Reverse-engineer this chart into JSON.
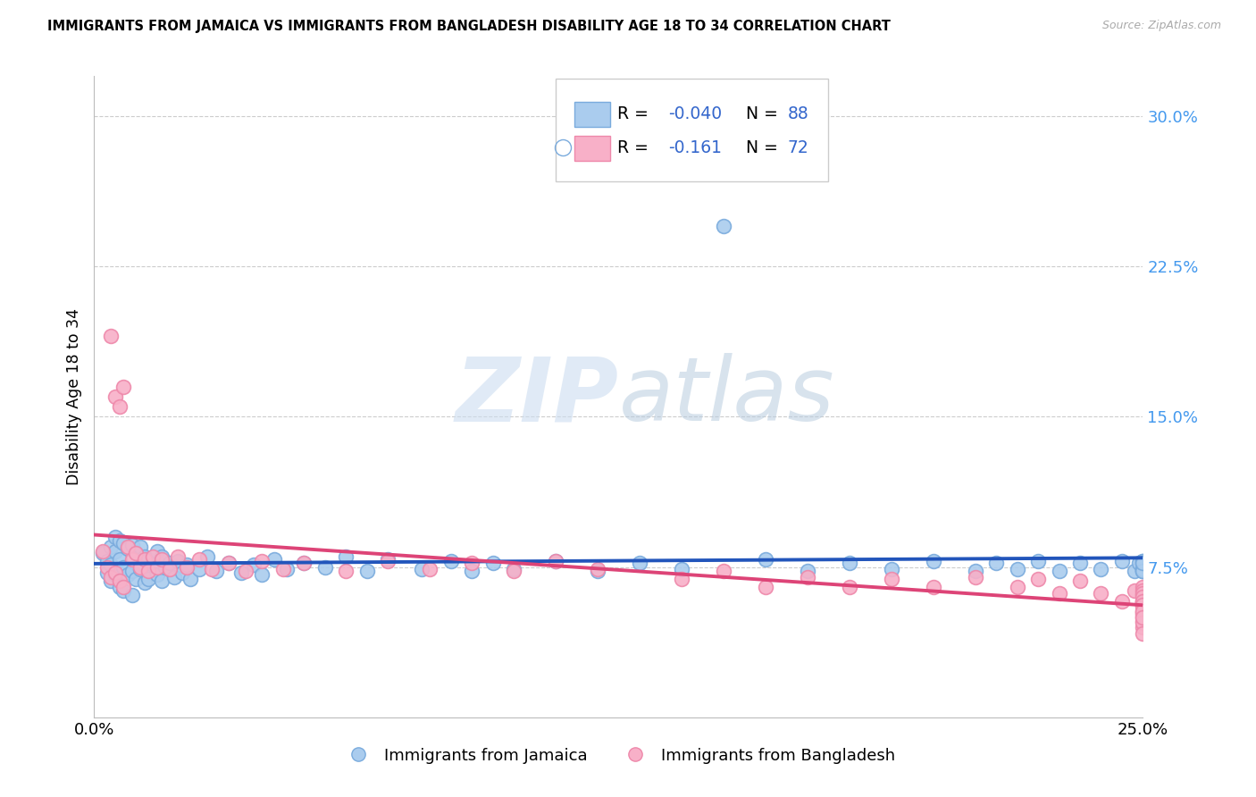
{
  "title": "IMMIGRANTS FROM JAMAICA VS IMMIGRANTS FROM BANGLADESH DISABILITY AGE 18 TO 34 CORRELATION CHART",
  "source": "Source: ZipAtlas.com",
  "ylabel": "Disability Age 18 to 34",
  "ytick_labels": [
    "7.5%",
    "15.0%",
    "22.5%",
    "30.0%"
  ],
  "ytick_values": [
    0.075,
    0.15,
    0.225,
    0.3
  ],
  "xlim": [
    0.0,
    0.25
  ],
  "ylim": [
    0.0,
    0.32
  ],
  "legend_jamaica": "Immigrants from Jamaica",
  "legend_bangladesh": "Immigrants from Bangladesh",
  "legend_r_jamaica": "-0.040",
  "legend_n_jamaica": "88",
  "legend_r_bangladesh": "-0.161",
  "legend_n_bangladesh": "72",
  "color_jamaica_face": "#aaccee",
  "color_jamaica_edge": "#7aabdd",
  "color_bangladesh_face": "#f8b0c8",
  "color_bangladesh_edge": "#ee88aa",
  "line_color_jamaica": "#2255bb",
  "line_color_bangladesh": "#dd4477",
  "legend_text_color": "#3366cc",
  "grid_color": "#cccccc",
  "watermark_zip_color": "#c8ddf0",
  "watermark_atlas_color": "#b8cce4",
  "scatter_size": 130,
  "jamaica_x": [
    0.002,
    0.003,
    0.003,
    0.004,
    0.004,
    0.004,
    0.005,
    0.005,
    0.005,
    0.006,
    0.006,
    0.006,
    0.007,
    0.007,
    0.007,
    0.008,
    0.008,
    0.009,
    0.009,
    0.009,
    0.01,
    0.01,
    0.011,
    0.011,
    0.012,
    0.012,
    0.013,
    0.013,
    0.014,
    0.015,
    0.015,
    0.016,
    0.016,
    0.017,
    0.018,
    0.019,
    0.02,
    0.021,
    0.022,
    0.023,
    0.025,
    0.027,
    0.029,
    0.032,
    0.035,
    0.038,
    0.04,
    0.043,
    0.046,
    0.05,
    0.055,
    0.06,
    0.065,
    0.07,
    0.078,
    0.085,
    0.09,
    0.095,
    0.1,
    0.11,
    0.12,
    0.13,
    0.14,
    0.15,
    0.16,
    0.17,
    0.18,
    0.19,
    0.2,
    0.21,
    0.215,
    0.22,
    0.225,
    0.23,
    0.235,
    0.24,
    0.245,
    0.248,
    0.249,
    0.25,
    0.25,
    0.25,
    0.25,
    0.25,
    0.25,
    0.25,
    0.25,
    0.25
  ],
  "jamaica_y": [
    0.082,
    0.078,
    0.072,
    0.085,
    0.076,
    0.068,
    0.09,
    0.083,
    0.071,
    0.088,
    0.079,
    0.065,
    0.087,
    0.075,
    0.063,
    0.084,
    0.071,
    0.086,
    0.073,
    0.061,
    0.082,
    0.069,
    0.085,
    0.074,
    0.08,
    0.067,
    0.079,
    0.069,
    0.076,
    0.083,
    0.071,
    0.08,
    0.068,
    0.075,
    0.077,
    0.07,
    0.078,
    0.072,
    0.076,
    0.069,
    0.074,
    0.08,
    0.073,
    0.077,
    0.072,
    0.076,
    0.071,
    0.079,
    0.074,
    0.077,
    0.075,
    0.08,
    0.073,
    0.079,
    0.074,
    0.078,
    0.073,
    0.077,
    0.074,
    0.078,
    0.073,
    0.077,
    0.074,
    0.245,
    0.079,
    0.073,
    0.077,
    0.074,
    0.078,
    0.073,
    0.077,
    0.074,
    0.078,
    0.073,
    0.077,
    0.074,
    0.078,
    0.073,
    0.077,
    0.074,
    0.078,
    0.073,
    0.073,
    0.077,
    0.074,
    0.078,
    0.073,
    0.077
  ],
  "bangladesh_x": [
    0.002,
    0.003,
    0.004,
    0.004,
    0.005,
    0.005,
    0.006,
    0.006,
    0.007,
    0.007,
    0.008,
    0.009,
    0.01,
    0.011,
    0.012,
    0.013,
    0.014,
    0.015,
    0.016,
    0.018,
    0.02,
    0.022,
    0.025,
    0.028,
    0.032,
    0.036,
    0.04,
    0.045,
    0.05,
    0.06,
    0.07,
    0.08,
    0.09,
    0.1,
    0.11,
    0.12,
    0.14,
    0.15,
    0.16,
    0.17,
    0.18,
    0.19,
    0.2,
    0.21,
    0.22,
    0.225,
    0.23,
    0.235,
    0.24,
    0.245,
    0.248,
    0.25,
    0.25,
    0.25,
    0.25,
    0.25,
    0.25,
    0.25,
    0.25,
    0.25,
    0.25,
    0.25,
    0.25,
    0.25,
    0.25,
    0.25,
    0.25,
    0.25,
    0.25,
    0.25,
    0.25,
    0.25
  ],
  "bangladesh_y": [
    0.083,
    0.075,
    0.19,
    0.07,
    0.16,
    0.072,
    0.155,
    0.068,
    0.165,
    0.065,
    0.085,
    0.079,
    0.082,
    0.075,
    0.079,
    0.073,
    0.08,
    0.075,
    0.079,
    0.074,
    0.08,
    0.075,
    0.079,
    0.074,
    0.077,
    0.073,
    0.078,
    0.074,
    0.077,
    0.073,
    0.078,
    0.074,
    0.077,
    0.073,
    0.078,
    0.074,
    0.069,
    0.073,
    0.065,
    0.07,
    0.065,
    0.069,
    0.065,
    0.07,
    0.065,
    0.069,
    0.062,
    0.068,
    0.062,
    0.058,
    0.063,
    0.065,
    0.061,
    0.058,
    0.063,
    0.057,
    0.062,
    0.058,
    0.053,
    0.06,
    0.055,
    0.051,
    0.058,
    0.052,
    0.048,
    0.056,
    0.05,
    0.045,
    0.053,
    0.047,
    0.042,
    0.05
  ]
}
